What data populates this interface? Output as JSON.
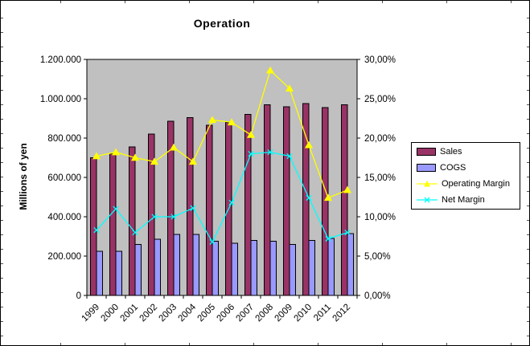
{
  "chart_data": {
    "type": "combo-bar-line",
    "title": "Operation",
    "ylabel_left": "Millions of yen",
    "categories": [
      "1999",
      "2000",
      "2001",
      "2002",
      "2003",
      "2004",
      "2005",
      "2006",
      "2007",
      "2008",
      "2009",
      "2010",
      "2011",
      "2012"
    ],
    "series": [
      {
        "name": "Sales",
        "type": "bar",
        "axis": "left",
        "color": "#993366",
        "values": [
          700000,
          720000,
          755000,
          820000,
          885000,
          905000,
          865000,
          880000,
          920000,
          970000,
          960000,
          975000,
          955000,
          970000
        ]
      },
      {
        "name": "COGS",
        "type": "bar",
        "axis": "left",
        "color": "#9999FF",
        "values": [
          225000,
          225000,
          260000,
          285000,
          310000,
          310000,
          275000,
          265000,
          280000,
          275000,
          260000,
          280000,
          290000,
          315000
        ]
      },
      {
        "name": "Operating Margin",
        "type": "line",
        "axis": "right",
        "color": "#FFFF00",
        "marker": "triangle",
        "values": [
          17.7,
          18.2,
          17.5,
          17.0,
          18.8,
          17.0,
          22.3,
          22.0,
          20.4,
          28.6,
          26.3,
          19.1,
          12.4,
          13.4
        ]
      },
      {
        "name": "Net Margin",
        "type": "line",
        "axis": "right",
        "color": "#00FFFF",
        "marker": "x",
        "values": [
          8.3,
          11.0,
          8.0,
          10.0,
          10.0,
          11.1,
          6.8,
          11.8,
          18.0,
          18.2,
          17.7,
          12.4,
          7.2,
          8.0
        ]
      }
    ],
    "left_axis": {
      "min": 0,
      "max": 1200000,
      "tick_labels": [
        "0",
        "200.000",
        "400.000",
        "600.000",
        "800.000",
        "1.000.000",
        "1.200.000"
      ]
    },
    "right_axis": {
      "min": 0,
      "max": 30,
      "tick_labels": [
        "0,00%",
        "5,00%",
        "10,00%",
        "15,00%",
        "20,00%",
        "25,00%",
        "30,00%"
      ]
    },
    "plot_background": "#C0C0C0",
    "legend_position": "right",
    "grid": false
  }
}
